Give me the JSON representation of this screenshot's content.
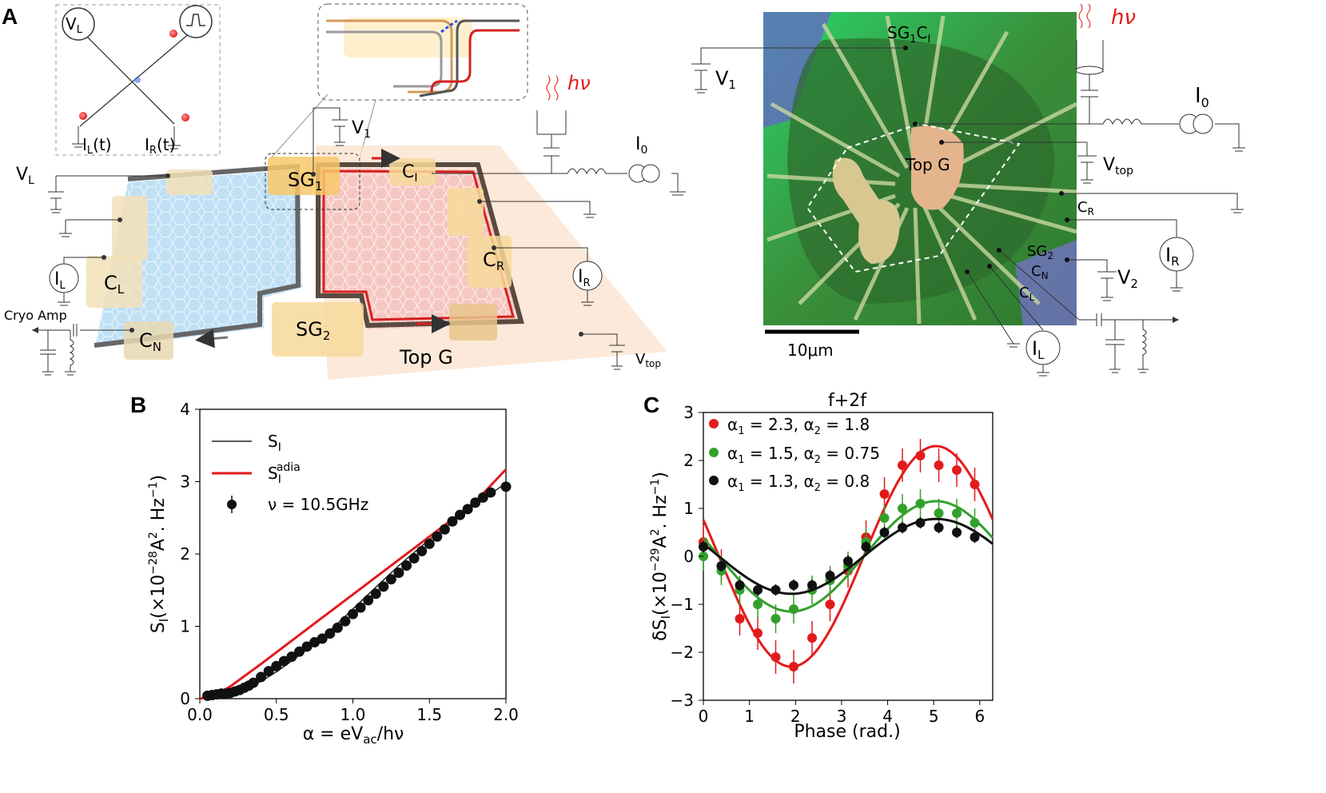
{
  "panel_a": {
    "letter": "A",
    "inset": {
      "VL": "V",
      "VL_sub": "L",
      "IL": "I",
      "IL_sub": "L",
      "IL_t": "(t)",
      "IR": "I",
      "IR_sub": "R",
      "IR_t": "(t)"
    },
    "left": {
      "VL": "V",
      "VL_sub": "L",
      "V1": "V",
      "V1_sub": "1",
      "I0": "I",
      "I0_sub": "0",
      "IL": "I",
      "IL_sub": "L",
      "IR": "I",
      "IR_sub": "R",
      "CL": "C",
      "CL_sub": "L",
      "CR": "C",
      "CR_sub": "R",
      "CN": "C",
      "CN_sub": "N",
      "CI": "C",
      "CI_sub": "I",
      "SG1": "SG",
      "SG1_sub": "1",
      "SG2": "SG",
      "SG2_sub": "2",
      "topg": "Top G",
      "vtop": "V",
      "vtop_sub": "top",
      "cryo": "Cryo Amp",
      "hv": "hν"
    },
    "right": {
      "SG1": "SG",
      "SG1_sub": "1",
      "CI": "C",
      "CI_sub": "I",
      "V1": "V",
      "V1_sub": "1",
      "hv": "hν",
      "I0": "I",
      "I0_sub": "0",
      "topg": "Top G",
      "vtop": "V",
      "vtop_sub": "top",
      "CR": "C",
      "CR_sub": "R",
      "IR": "I",
      "IR_sub": "R",
      "SG2": "SG",
      "SG2_sub": "2",
      "CN": "C",
      "CN_sub": "N",
      "CL": "C",
      "CL_sub": "L",
      "V2": "V",
      "V2_sub": "2",
      "IL": "I",
      "IL_sub": "L",
      "scale": "10μm"
    }
  },
  "chart_data": [
    {
      "id": "B",
      "type": "line",
      "letter": "B",
      "xlabel": "α = eV",
      "xlabel_sub": "ac",
      "xlabel_tail": "/hν",
      "ylabel": "S",
      "ylabel_sub": "I",
      "ylabel_tail": "(×10",
      "ylabel_exp": "−28",
      "ylabel_units": "A",
      "ylabel_units_exp": "2",
      "ylabel_units_tail": ". Hz",
      "ylabel_units_exp2": "−1",
      "ylabel_close": ")",
      "xlim": [
        0,
        2.0
      ],
      "ylim": [
        0,
        4
      ],
      "xticks": [
        "0.0",
        "0.5",
        "1.0",
        "1.5",
        "2.0"
      ],
      "yticks": [
        "0",
        "1",
        "2",
        "3",
        "4"
      ],
      "legend": [
        {
          "label": "S",
          "sub": "I",
          "sup": "",
          "color": "#222222",
          "kind": "line"
        },
        {
          "label": "S",
          "sub": "I",
          "sup": "adia",
          "color": "#e31a1c",
          "kind": "line"
        },
        {
          "label": "ν = 10.5GHz",
          "sub": "",
          "sup": "",
          "color": "#111111",
          "kind": "marker"
        }
      ],
      "series": [
        {
          "name": "S_I",
          "color": "#222222",
          "x": [
            0.1,
            0.2,
            0.3,
            0.4,
            0.5,
            0.6,
            0.7,
            0.8,
            0.9,
            1.0,
            1.1,
            1.2,
            1.3,
            1.4,
            1.5,
            1.6,
            1.7,
            1.8,
            1.9,
            2.0
          ],
          "y": [
            0.0,
            0.06,
            0.14,
            0.24,
            0.37,
            0.52,
            0.68,
            0.85,
            1.04,
            1.24,
            1.44,
            1.64,
            1.84,
            2.02,
            2.2,
            2.36,
            2.52,
            2.68,
            2.83,
            2.98
          ]
        },
        {
          "name": "S_I^adia",
          "color": "#e31a1c",
          "x": [
            0.0,
            0.1,
            0.2,
            0.4,
            0.6,
            0.8,
            1.0,
            1.2,
            1.4,
            1.6,
            1.8,
            2.0
          ],
          "y": [
            0.0,
            0.05,
            0.17,
            0.48,
            0.8,
            1.12,
            1.44,
            1.76,
            2.08,
            2.4,
            2.72,
            3.17
          ]
        },
        {
          "name": "ν = 10.5GHz",
          "color": "#111111",
          "markers": true,
          "x": [
            0.05,
            0.08,
            0.11,
            0.14,
            0.17,
            0.2,
            0.23,
            0.26,
            0.29,
            0.32,
            0.35,
            0.4,
            0.45,
            0.5,
            0.55,
            0.6,
            0.65,
            0.7,
            0.75,
            0.8,
            0.85,
            0.9,
            0.95,
            1.0,
            1.05,
            1.1,
            1.15,
            1.2,
            1.25,
            1.3,
            1.35,
            1.4,
            1.45,
            1.5,
            1.55,
            1.6,
            1.65,
            1.7,
            1.75,
            1.8,
            1.85,
            1.9,
            2.0
          ],
          "y": [
            0.04,
            0.05,
            0.06,
            0.07,
            0.07,
            0.08,
            0.1,
            0.12,
            0.15,
            0.18,
            0.22,
            0.3,
            0.38,
            0.45,
            0.52,
            0.58,
            0.65,
            0.72,
            0.78,
            0.83,
            0.9,
            0.98,
            1.07,
            1.17,
            1.26,
            1.36,
            1.45,
            1.55,
            1.65,
            1.74,
            1.84,
            1.94,
            2.04,
            2.14,
            2.24,
            2.34,
            2.45,
            2.54,
            2.62,
            2.71,
            2.78,
            2.85,
            2.93
          ]
        }
      ]
    },
    {
      "id": "C",
      "type": "scatter",
      "letter": "C",
      "title": "f+2f",
      "xlabel": "Phase (rad.)",
      "ylabel": "δS",
      "ylabel_sub": "I",
      "ylabel_tail": "(×10",
      "ylabel_exp": "−29",
      "ylabel_units": "A",
      "ylabel_units_exp": "2",
      "ylabel_units_tail": ". Hz",
      "ylabel_units_exp2": "−1",
      "ylabel_close": ")",
      "xlim": [
        0,
        6.28
      ],
      "ylim": [
        -3,
        3
      ],
      "xticks": [
        "0",
        "1",
        "2",
        "3",
        "4",
        "5",
        "6"
      ],
      "yticks": [
        "−3",
        "−2",
        "−1",
        "0",
        "1",
        "2",
        "3"
      ],
      "series": [
        {
          "name": "α1 = 2.3, α2 = 1.8",
          "legend": [
            "α",
            "1",
            " = 2.3, ",
            "α",
            "2",
            " = 1.8"
          ],
          "color": "#e31a1c",
          "amp": 2.3,
          "offset": 0.0,
          "center": 3.48,
          "x": [
            0.0,
            0.39,
            0.79,
            1.18,
            1.57,
            1.96,
            2.36,
            2.75,
            3.14,
            3.53,
            3.93,
            4.32,
            4.71,
            5.11,
            5.5,
            5.89
          ],
          "y": [
            0.3,
            -0.2,
            -1.3,
            -1.6,
            -2.1,
            -2.3,
            -1.7,
            -1.0,
            -0.3,
            0.4,
            1.3,
            1.9,
            2.1,
            1.9,
            1.8,
            1.5
          ],
          "err": 0.35
        },
        {
          "name": "α1 = 1.5, α2 = 0.75",
          "legend": [
            "α",
            "1",
            " = 1.5, ",
            "α",
            "2",
            " = 0.75"
          ],
          "color": "#33a02c",
          "amp": 1.15,
          "offset": 0.0,
          "center": 3.48,
          "x": [
            0.0,
            0.39,
            0.79,
            1.18,
            1.57,
            1.96,
            2.36,
            2.75,
            3.14,
            3.53,
            3.93,
            4.32,
            4.71,
            5.11,
            5.5,
            5.89
          ],
          "y": [
            0.0,
            -0.3,
            -0.7,
            -1.0,
            -1.3,
            -1.1,
            -0.7,
            -0.5,
            -0.2,
            0.3,
            0.8,
            1.0,
            1.1,
            0.9,
            0.9,
            0.7
          ],
          "err": 0.3
        },
        {
          "name": "α1 = 1.3, α2 = 0.8",
          "legend": [
            "α",
            "1",
            " = 1.3, ",
            "α",
            "2",
            " = 0.8"
          ],
          "color": "#111111",
          "amp": 0.78,
          "offset": 0.0,
          "center": 3.48,
          "x": [
            0.0,
            0.39,
            0.79,
            1.18,
            1.57,
            1.96,
            2.36,
            2.75,
            3.14,
            3.53,
            3.93,
            4.32,
            4.71,
            5.11,
            5.5,
            5.89
          ],
          "y": [
            0.2,
            -0.2,
            -0.6,
            -0.7,
            -0.7,
            -0.6,
            -0.6,
            -0.4,
            -0.1,
            0.2,
            0.5,
            0.6,
            0.7,
            0.6,
            0.5,
            0.4
          ],
          "err": 0.12
        }
      ]
    }
  ]
}
